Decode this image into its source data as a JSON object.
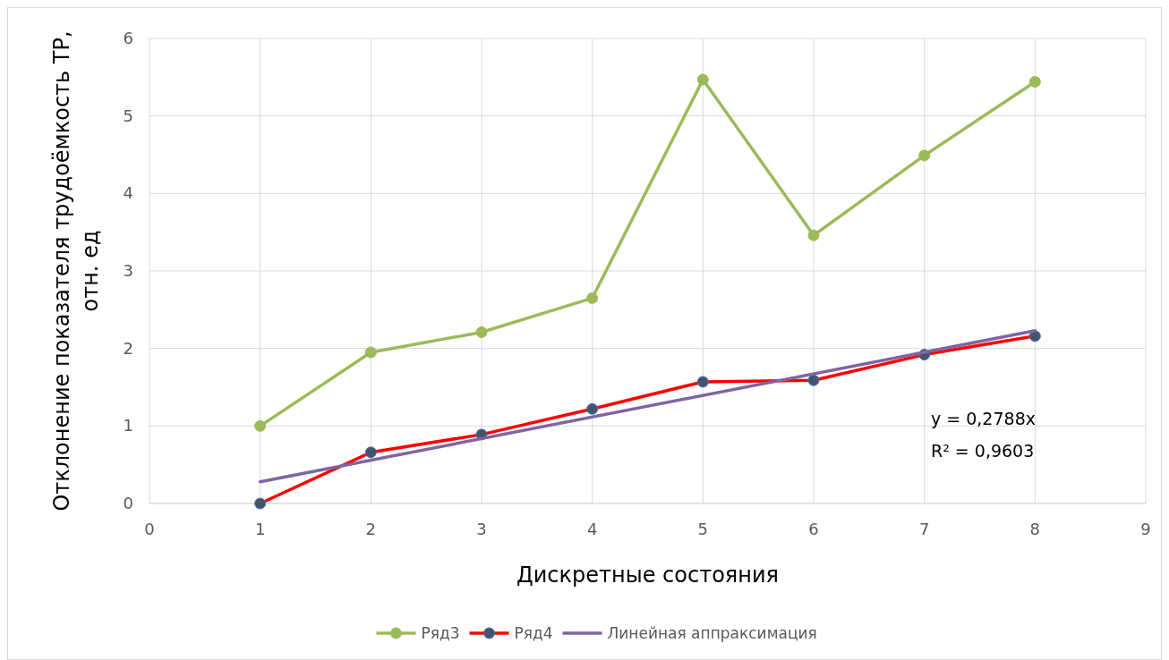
{
  "chart_data": {
    "type": "line",
    "xlabel": "Дискретные состояния",
    "ylabel": "Отклонение показателя трудоёмкость ТР, отн. ед",
    "x": [
      1,
      2,
      3,
      4,
      5,
      6,
      7,
      8
    ],
    "series": [
      {
        "name": "Ряд3",
        "color": "#9bbb59",
        "values": [
          1.0,
          1.95,
          2.21,
          2.65,
          5.47,
          3.46,
          4.49,
          5.44
        ],
        "marker": "circle"
      },
      {
        "name": "Ряд4",
        "color": "#ff0000",
        "values": [
          0,
          0.66,
          0.89,
          1.22,
          1.57,
          1.59,
          1.92,
          2.16
        ],
        "marker": "circle"
      },
      {
        "name": "Линейная аппраксимация",
        "color": "#8064a2",
        "x": [
          1,
          8
        ],
        "values": [
          0.28,
          2.23
        ],
        "marker": "none"
      }
    ],
    "xlim": [
      0,
      9
    ],
    "xticks": [
      0,
      1,
      2,
      3,
      4,
      5,
      6,
      7,
      8,
      9
    ],
    "ylim": [
      0,
      6
    ],
    "yticks": [
      0,
      1,
      2,
      3,
      4,
      5,
      6
    ],
    "grid": true,
    "legend": "bottom",
    "annotations": [
      "y = 0,2788x",
      "R² = 0,9603"
    ]
  }
}
